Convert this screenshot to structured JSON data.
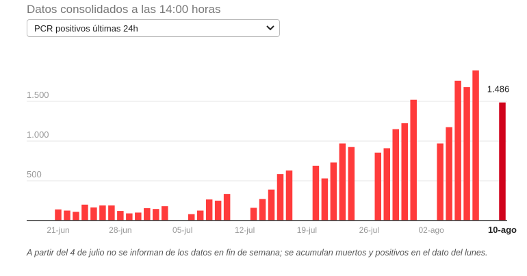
{
  "header": {
    "subtitle": "Datos consolidados a las 14:00 horas",
    "select_value": "PCR positivos últimas 24h"
  },
  "icons": {
    "select_arrow": "chevron-down-icon"
  },
  "colors": {
    "bar": "#ff3b3b",
    "highlight": "#d0021b",
    "grid": "#e6e6e6",
    "axis": "#333333"
  },
  "chart_data": {
    "type": "bar",
    "title": "",
    "xlabel": "",
    "ylabel": "",
    "ylim": [
      0,
      2000
    ],
    "yticks": [
      500,
      1000,
      1500
    ],
    "ytick_labels": [
      "500",
      "1.000",
      "1.500"
    ],
    "grid": true,
    "categories": [
      "21-jun",
      "22-jun",
      "23-jun",
      "24-jun",
      "25-jun",
      "26-jun",
      "27-jun",
      "28-jun",
      "29-jun",
      "30-jun",
      "01-jul",
      "02-jul",
      "03-jul",
      "04-jul",
      "05-jul",
      "06-jul",
      "07-jul",
      "08-jul",
      "09-jul",
      "10-jul",
      "11-jul",
      "12-jul",
      "13-jul",
      "14-jul",
      "15-jul",
      "16-jul",
      "17-jul",
      "18-jul",
      "19-jul",
      "20-jul",
      "21-jul",
      "22-jul",
      "23-jul",
      "24-jul",
      "25-jul",
      "26-jul",
      "27-jul",
      "28-jul",
      "29-jul",
      "30-jul",
      "31-jul",
      "01-ago",
      "02-ago",
      "03-ago",
      "04-ago",
      "05-ago",
      "06-ago",
      "07-ago",
      "08-ago",
      "09-ago",
      "10-ago"
    ],
    "values": [
      140,
      125,
      110,
      200,
      165,
      190,
      190,
      120,
      90,
      100,
      155,
      145,
      180,
      null,
      null,
      80,
      125,
      265,
      250,
      335,
      null,
      null,
      160,
      270,
      390,
      585,
      630,
      null,
      null,
      690,
      530,
      730,
      970,
      925,
      null,
      null,
      855,
      910,
      1150,
      1225,
      1520,
      null,
      null,
      970,
      1175,
      1760,
      1680,
      1890,
      null,
      null,
      1486
    ],
    "xtick_labels": [
      "21-jun",
      "28-jun",
      "05-jul",
      "12-jul",
      "19-jul",
      "26-jul",
      "02-ago",
      "10-ago"
    ],
    "highlight": {
      "category": "10-ago",
      "label": "1.486"
    }
  },
  "footnote": "A partir del 4 de julio no se informan de los datos en fin de semana; se acumulan muertos y positivos en el dato del lunes."
}
